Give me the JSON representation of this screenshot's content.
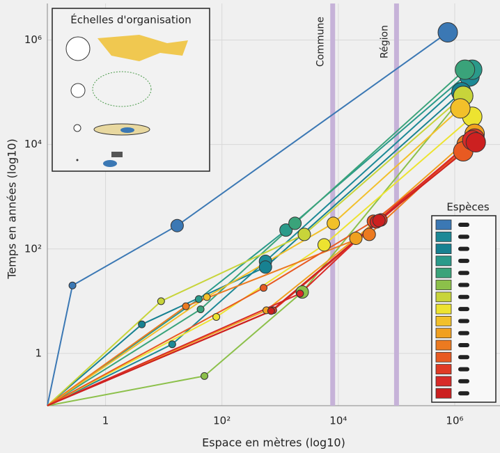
{
  "chart_data": {
    "type": "scatter-line",
    "xlabel": "Espace en mètres (log10)",
    "ylabel": "Temps en années (log10)",
    "xlog": true,
    "ylog": true,
    "grid": true,
    "xlim": [
      0.1,
      6000000
    ],
    "ylim": [
      0.1,
      5000000
    ],
    "xticks": [
      1,
      {
        "value": 100,
        "label": "10²"
      },
      {
        "value": 10000,
        "label": "10⁴"
      },
      {
        "value": 1000000,
        "label": "10⁶"
      }
    ],
    "yticks": [
      1,
      {
        "value": 100,
        "label": "10²"
      },
      {
        "value": 10000,
        "label": "10⁴"
      },
      {
        "value": 1000000,
        "label": "10⁶"
      }
    ],
    "vlines": [
      {
        "label": "Commune",
        "value": 8000
      },
      {
        "label": "Région",
        "value": 100000
      }
    ],
    "inset_title": "Échelles d'organisation",
    "legend_title": "Espèces",
    "series": [
      {
        "color": "#3b78b4",
        "x": [
          0.1,
          0.27,
          17,
          760000
        ],
        "values": [
          0.1,
          20,
          280,
          1400000
        ]
      },
      {
        "color": "#1d8996",
        "x": [
          0.1,
          14,
          560,
          1800000
        ],
        "values": [
          0.1,
          1.5,
          58,
          200000
        ]
      },
      {
        "color": "#178191",
        "x": [
          0.1,
          4.2,
          560,
          1300000
        ],
        "values": [
          0.1,
          3.6,
          45,
          100000
        ]
      },
      {
        "color": "#2a9a8a",
        "x": [
          0.1,
          40,
          1260,
          2000000
        ],
        "values": [
          0.1,
          11,
          230,
          270000
        ]
      },
      {
        "color": "#3aa37a",
        "x": [
          0.1,
          43,
          1800,
          1500000
        ],
        "values": [
          0.1,
          7,
          310,
          270000
        ]
      },
      {
        "color": "#8cc04a",
        "x": [
          0.1,
          50,
          2400,
          1400000
        ],
        "values": [
          0.1,
          0.37,
          15,
          85000
        ]
      },
      {
        "color": "#c8d43a",
        "x": [
          0.1,
          9,
          2600,
          1400000
        ],
        "values": [
          0.1,
          10,
          190,
          85000
        ]
      },
      {
        "color": "#ede330",
        "x": [
          0.1,
          80,
          5700,
          2000000
        ],
        "values": [
          0.1,
          5,
          120,
          34000
        ]
      },
      {
        "color": "#f2c02a",
        "x": [
          0.1,
          55,
          8200,
          1250000
        ],
        "values": [
          0.1,
          12,
          310,
          49000
        ]
      },
      {
        "color": "#f0a020",
        "x": [
          0.1,
          580,
          20000,
          2200000
        ],
        "values": [
          0.1,
          6.7,
          160,
          16000
        ]
      },
      {
        "color": "#ec7a20",
        "x": [
          0.1,
          24,
          34000,
          1600000
        ],
        "values": [
          0.1,
          8,
          190,
          10000
        ]
      },
      {
        "color": "#e85a22",
        "x": [
          0.1,
          520,
          40000,
          1400000
        ],
        "values": [
          0.1,
          18,
          340,
          7400
        ]
      },
      {
        "color": "#e03a25",
        "x": [
          0.1,
          760,
          54000,
          2200000
        ],
        "values": [
          0.1,
          6.7,
          360,
          13000
        ]
      },
      {
        "color": "#d82a28",
        "x": [
          0.1,
          2200,
          45000,
          2000000
        ],
        "values": [
          0.1,
          14,
          330,
          12000
        ]
      },
      {
        "color": "#cc2020",
        "x": [
          0.1,
          700,
          50000,
          2300000
        ],
        "values": [
          0.1,
          6.5,
          350,
          11000
        ]
      }
    ]
  }
}
